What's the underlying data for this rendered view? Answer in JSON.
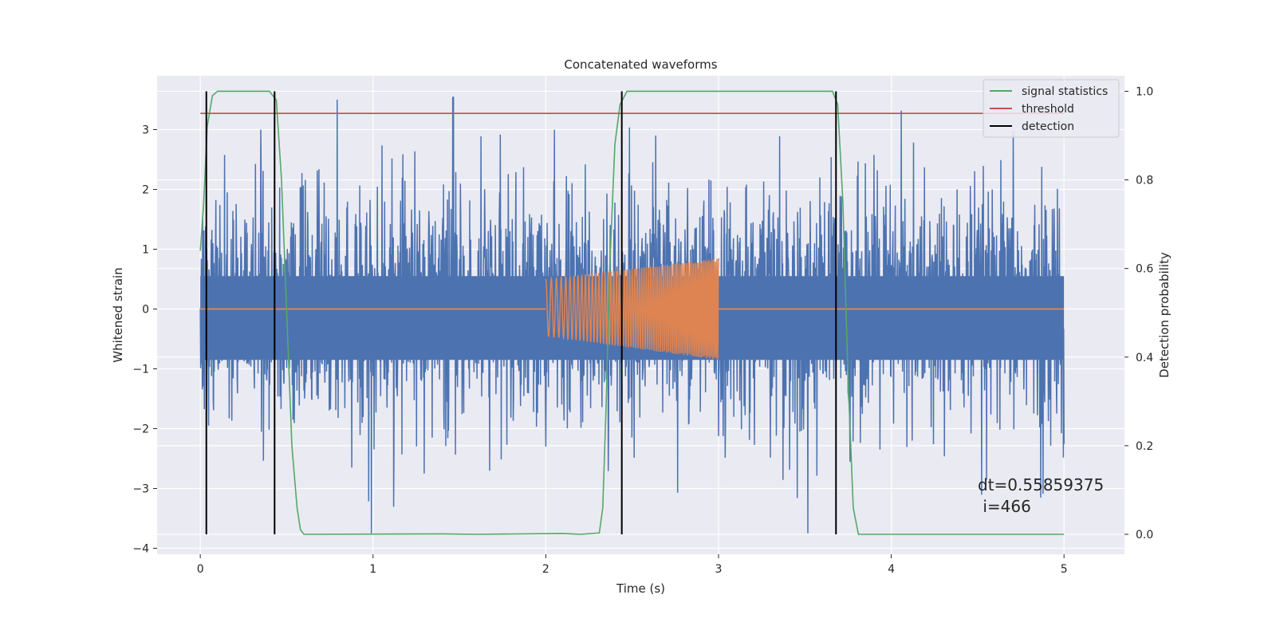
{
  "chart_data": {
    "type": "line",
    "title": "Concatenated waveforms",
    "xlabel": "Time (s)",
    "ylabel": "Whitened strain",
    "y2label": "Detection probability",
    "xlim": [
      -0.25,
      5.35
    ],
    "ylim": [
      -4.1,
      3.9
    ],
    "y2lim": [
      -0.045,
      1.035
    ],
    "x_ticks": [
      0,
      1,
      2,
      3,
      4,
      5
    ],
    "y_ticks": [
      -4,
      -3,
      -2,
      -1,
      0,
      1,
      2,
      3
    ],
    "y2_ticks": [
      0.0,
      0.2,
      0.4,
      0.6,
      0.8,
      1.0
    ],
    "grid": true,
    "legend_position": "top-right",
    "annotation": [
      "dt=0.55859375",
      " i=466"
    ],
    "series": [
      {
        "name": "",
        "axis": "left",
        "color": "#4c72b0",
        "kind": "noise",
        "x_range": [
          0,
          5
        ],
        "dense_band": [
          -0.85,
          0.55
        ],
        "spike_max": 3.55,
        "spike_min": -3.75
      },
      {
        "name": "",
        "axis": "left",
        "color": "#dd8452",
        "kind": "chirp",
        "x_range": [
          0,
          5
        ],
        "chirp_start": 2.0,
        "chirp_end": 3.0,
        "amp_upper": [
          0.5,
          0.85
        ],
        "amp_lower": [
          -0.45,
          -0.85
        ]
      },
      {
        "name": "signal statistics",
        "axis": "right",
        "color": "#55a868",
        "points": [
          [
            0.0,
            0.64
          ],
          [
            0.02,
            0.75
          ],
          [
            0.04,
            0.92
          ],
          [
            0.07,
            0.99
          ],
          [
            0.1,
            1.0
          ],
          [
            0.4,
            1.0
          ],
          [
            0.44,
            0.98
          ],
          [
            0.47,
            0.8
          ],
          [
            0.5,
            0.5
          ],
          [
            0.53,
            0.2
          ],
          [
            0.56,
            0.06
          ],
          [
            0.58,
            0.01
          ],
          [
            0.6,
            0.0
          ],
          [
            1.4,
            0.001
          ],
          [
            1.6,
            0.0
          ],
          [
            2.1,
            0.002
          ],
          [
            2.2,
            0.0
          ],
          [
            2.31,
            0.003
          ],
          [
            2.33,
            0.06
          ],
          [
            2.35,
            0.3
          ],
          [
            2.37,
            0.6
          ],
          [
            2.4,
            0.88
          ],
          [
            2.43,
            0.97
          ],
          [
            2.47,
            1.0
          ],
          [
            3.66,
            1.0
          ],
          [
            3.69,
            0.97
          ],
          [
            3.72,
            0.75
          ],
          [
            3.75,
            0.35
          ],
          [
            3.78,
            0.06
          ],
          [
            3.81,
            0.0
          ],
          [
            5.0,
            0.0
          ]
        ]
      },
      {
        "name": "threshold",
        "axis": "right",
        "color": "#c44e52",
        "points": [
          [
            0.0,
            0.95
          ],
          [
            5.0,
            0.95
          ]
        ]
      },
      {
        "name": "detection",
        "axis": "right",
        "color": "#000000",
        "vlines": [
          0.035,
          0.43,
          2.44,
          3.68
        ],
        "span": [
          0.0,
          1.0
        ]
      }
    ]
  }
}
